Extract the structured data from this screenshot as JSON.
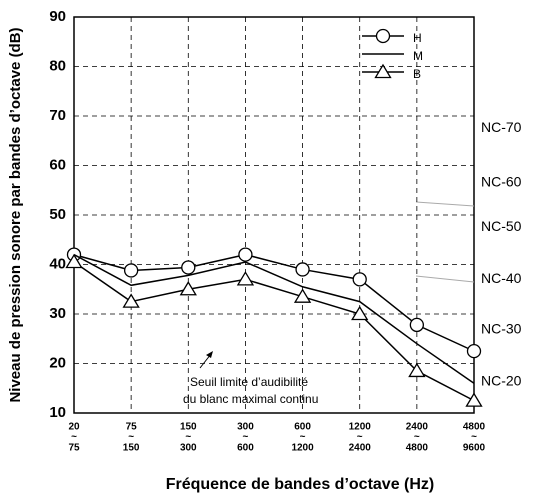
{
  "chart_data": {
    "type": "line",
    "x_label": "Fréquence de bandes d’octave (Hz)",
    "y_label": "Niveau de pression sonore par bandes d’octave (dB)",
    "categories": [
      [
        "20",
        "75"
      ],
      [
        "75",
        "150"
      ],
      [
        "150",
        "300"
      ],
      [
        "300",
        "600"
      ],
      [
        "600",
        "1200"
      ],
      [
        "1200",
        "2400"
      ],
      [
        "2400",
        "4800"
      ],
      [
        "4800",
        "9600"
      ]
    ],
    "range_separator": "~",
    "ylim": [
      10,
      90
    ],
    "yticks": [
      10,
      20,
      30,
      40,
      50,
      60,
      70,
      80,
      90
    ],
    "grid": true,
    "legend_position": "upper right",
    "series": [
      {
        "name": "H",
        "color": "#000000",
        "marker": "circle",
        "values": [
          42,
          38.8,
          39.4,
          42,
          39,
          37,
          27.8,
          22.5
        ]
      },
      {
        "name": "M",
        "color": "#000000",
        "marker": "none",
        "values": [
          42,
          35.8,
          37.8,
          40.5,
          35.5,
          32.5,
          24,
          16
        ]
      },
      {
        "name": "B",
        "color": "#000000",
        "marker": "triangle",
        "values": [
          40.5,
          32.5,
          35,
          37,
          33.5,
          30,
          18.5,
          12.5
        ]
      }
    ],
    "nc_labels": [
      {
        "text": "NC-70",
        "value": 67.5
      },
      {
        "text": "NC-60",
        "value": 56.5
      },
      {
        "text": "NC-50",
        "value": 47.5
      },
      {
        "text": "NC-40",
        "value": 37
      },
      {
        "text": "NC-30",
        "value": 26.8
      },
      {
        "text": "NC-20",
        "value": 16.3
      }
    ],
    "annotation": [
      "Seuil limite d’audibilité",
      "du blanc maximal continu"
    ]
  }
}
